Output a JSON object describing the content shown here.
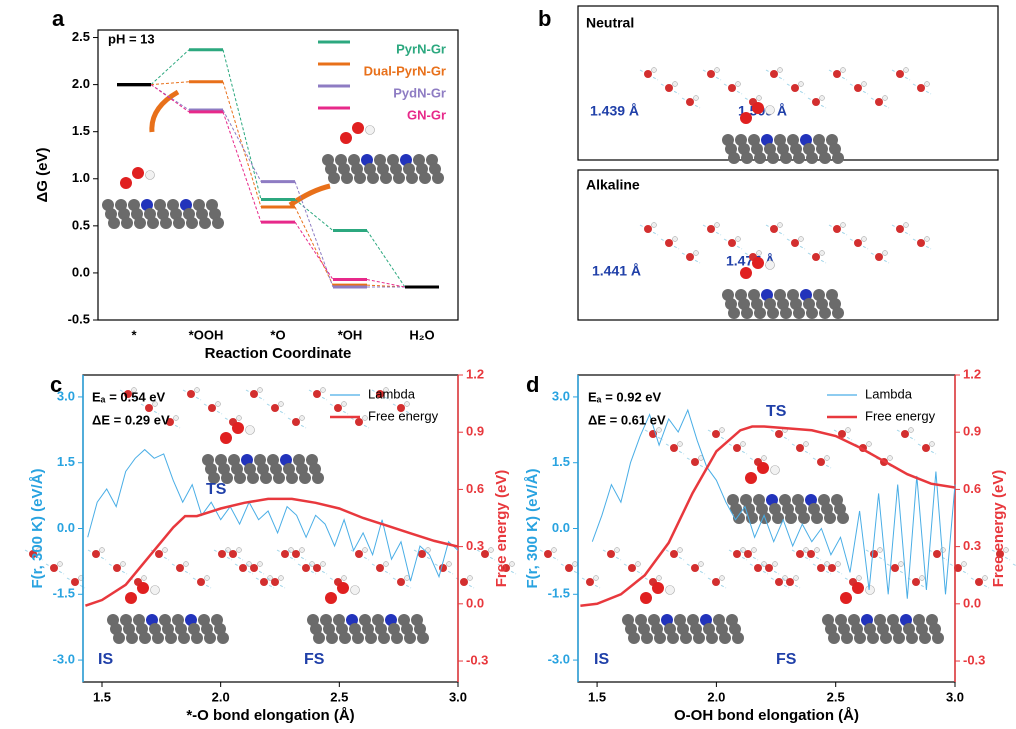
{
  "chart_data": [
    {
      "type": "step",
      "panel_label": "a",
      "annotation": "pH = 13",
      "x_label": "Reaction Coordinate",
      "y_label": "ΔG (eV)",
      "categories": [
        "*",
        "*OOH",
        "*O",
        "*OH",
        "H₂O"
      ],
      "endpoint_color": "#000000",
      "series": [
        {
          "name": "PyrN-Gr",
          "color": "#2ca87f",
          "values": [
            2.0,
            2.37,
            0.78,
            0.45,
            -0.15
          ]
        },
        {
          "name": "Dual-PyrN-Gr",
          "color": "#e8701a",
          "values": [
            2.0,
            2.03,
            0.7,
            -0.13,
            -0.15
          ]
        },
        {
          "name": "PydN-Gr",
          "color": "#8e7cc3",
          "values": [
            2.0,
            1.73,
            0.97,
            -0.15,
            -0.15
          ]
        },
        {
          "name": "GN-Gr",
          "color": "#e7298a",
          "values": [
            2.0,
            1.71,
            0.54,
            -0.07,
            -0.15
          ]
        }
      ],
      "ylim": [
        -0.5,
        2.58
      ],
      "yticks": [
        -0.5,
        {
          "value": 0,
          "label": "0.0"
        },
        0.5,
        {
          "value": 1,
          "label": "1.0"
        },
        1.5,
        {
          "value": 2,
          "label": "2.0"
        },
        2.5
      ]
    },
    {
      "type": "line",
      "panel_label": "c",
      "x_label": "*-O bond elongation (Å)",
      "y_label": "F(r, 300 K) (eV/Å)",
      "y2_label": "Free energy (eV)",
      "annotations": [
        "Eₐ = 0.54 eV",
        "ΔE = 0.29 eV",
        "TS",
        "IS",
        "FS"
      ],
      "series": [
        {
          "name": "Lambda",
          "color": "#4aaee6",
          "axis": "y",
          "x": [
            1.44,
            1.48,
            1.52,
            1.56,
            1.6,
            1.64,
            1.68,
            1.72,
            1.76,
            1.8,
            1.84,
            1.88,
            1.92,
            1.96,
            2.0,
            2.04,
            2.08,
            2.12,
            2.16,
            2.2,
            2.24,
            2.28,
            2.32,
            2.36,
            2.4,
            2.44,
            2.48,
            2.52,
            2.56,
            2.6,
            2.64,
            2.68,
            2.72,
            2.76,
            2.8,
            2.84,
            2.88,
            2.92,
            2.96,
            3.0
          ],
          "values": [
            -0.2,
            0.6,
            0.9,
            0.5,
            1.3,
            1.6,
            1.8,
            1.6,
            1.7,
            1.1,
            0.6,
            1.0,
            0.3,
            0.6,
            0.2,
            0.5,
            0.1,
            0.6,
            0.2,
            0.4,
            -0.1,
            0.5,
            0.3,
            -0.2,
            0.3,
            0.1,
            -0.4,
            0.2,
            -0.5,
            -0.1,
            -0.6,
            0.2,
            -0.7,
            -0.3,
            -1.2,
            -0.4,
            -0.6,
            -1.1,
            -0.3,
            -0.5
          ]
        },
        {
          "name": "Free energy",
          "color": "#e8383d",
          "axis": "y2",
          "x": [
            1.43,
            1.5,
            1.6,
            1.7,
            1.8,
            1.85,
            1.9,
            2.0,
            2.1,
            2.2,
            2.3,
            2.4,
            2.5,
            2.6,
            2.7,
            2.8,
            2.9,
            3.0
          ],
          "values": [
            -0.01,
            0.02,
            0.1,
            0.25,
            0.4,
            0.46,
            0.46,
            0.5,
            0.53,
            0.55,
            0.55,
            0.53,
            0.5,
            0.45,
            0.41,
            0.37,
            0.33,
            0.3
          ]
        }
      ],
      "xlim": [
        1.42,
        3.0
      ],
      "xticks": [
        1.5,
        {
          "value": 2,
          "label": "2.0"
        },
        2.5,
        {
          "value": 3,
          "label": "3.0"
        }
      ],
      "ylim": [
        -3.5,
        3.5
      ],
      "yticks": [
        {
          "value": -3,
          "label": "-3.0"
        },
        -1.5,
        {
          "value": 0,
          "label": "0.0"
        },
        1.5,
        {
          "value": 3,
          "label": "3.0"
        }
      ],
      "y2lim": [
        -0.41,
        1.2
      ],
      "y2ticks": [
        -0.3,
        {
          "value": 0,
          "label": "0.0"
        },
        0.3,
        0.6,
        0.9,
        1.2
      ],
      "legend": "upper right"
    },
    {
      "type": "line",
      "panel_label": "d",
      "x_label": "O-OH bond elongation (Å)",
      "y_label": "F(r, 300 K) (eV/Å)",
      "y2_label": "Free energy (eV)",
      "annotations": [
        "Eₐ = 0.92 eV",
        "ΔE = 0.61 eV",
        "TS",
        "IS",
        "FS"
      ],
      "series": [
        {
          "name": "Lambda",
          "color": "#4aaee6",
          "axis": "y",
          "x": [
            1.48,
            1.52,
            1.56,
            1.6,
            1.64,
            1.68,
            1.72,
            1.76,
            1.8,
            1.84,
            1.88,
            1.92,
            1.96,
            2.0,
            2.04,
            2.08,
            2.12,
            2.16,
            2.2,
            2.24,
            2.28,
            2.32,
            2.36,
            2.4,
            2.44,
            2.48,
            2.52,
            2.56,
            2.6,
            2.64,
            2.68,
            2.72,
            2.76,
            2.8,
            2.84,
            2.88,
            2.92,
            2.96,
            3.0
          ],
          "values": [
            -0.3,
            0.3,
            1.0,
            0.6,
            1.5,
            2.1,
            2.6,
            1.9,
            2.5,
            2.2,
            2.7,
            2.0,
            1.4,
            1.1,
            0.6,
            0.2,
            0.5,
            -0.2,
            0.3,
            -0.3,
            0.2,
            -0.4,
            0.1,
            -0.3,
            0.0,
            -0.6,
            -0.2,
            -1.0,
            0.4,
            -1.4,
            0.8,
            -1.5,
            1.0,
            -1.6,
            1.2,
            -1.4,
            1.3,
            -1.5,
            1.0
          ]
        },
        {
          "name": "Free energy",
          "color": "#e8383d",
          "axis": "y2",
          "x": [
            1.43,
            1.5,
            1.6,
            1.7,
            1.8,
            1.9,
            2.0,
            2.1,
            2.15,
            2.2,
            2.3,
            2.4,
            2.5,
            2.6,
            2.7,
            2.8,
            2.9,
            3.0
          ],
          "values": [
            -0.01,
            0.0,
            0.05,
            0.15,
            0.32,
            0.58,
            0.8,
            0.91,
            0.93,
            0.93,
            0.92,
            0.91,
            0.88,
            0.82,
            0.75,
            0.68,
            0.63,
            0.61
          ]
        }
      ],
      "xlim": [
        1.42,
        3.0
      ],
      "xticks": [
        1.5,
        {
          "value": 2,
          "label": "2.0"
        },
        2.5,
        {
          "value": 3,
          "label": "3.0"
        }
      ],
      "ylim": [
        -3.5,
        3.5
      ],
      "yticks": [
        {
          "value": -3,
          "label": "-3.0"
        },
        -1.5,
        {
          "value": 0,
          "label": "0.0"
        },
        1.5,
        {
          "value": 3,
          "label": "3.0"
        }
      ],
      "y2lim": [
        -0.41,
        1.2
      ],
      "y2ticks": [
        -0.3,
        {
          "value": 0,
          "label": "0.0"
        },
        0.3,
        0.6,
        0.9,
        1.2
      ],
      "legend": "upper right"
    }
  ],
  "panel_b": {
    "panel_label": "b",
    "neutral": {
      "title": "Neutral",
      "labels": [
        "1.439 Å",
        "1.509 Å"
      ]
    },
    "alkaline": {
      "title": "Alkaline",
      "labels": [
        "1.441 Å",
        "1.477 Å"
      ]
    }
  }
}
